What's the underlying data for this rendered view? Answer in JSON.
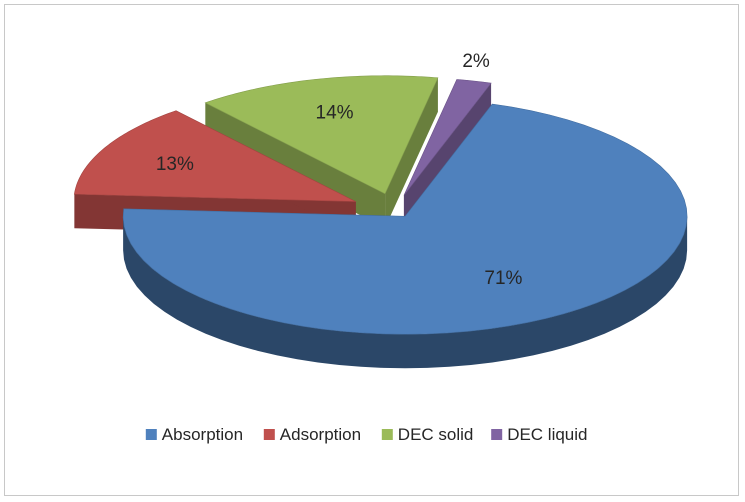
{
  "chart_data": {
    "type": "pie",
    "style": "3d-exploded",
    "title": "",
    "slices": [
      {
        "label": "Absorption",
        "value": 71,
        "display": "71%",
        "color": "#4f81bd"
      },
      {
        "label": "Adsorption",
        "value": 13,
        "display": "13%",
        "color": "#c0504d"
      },
      {
        "label": "DEC solid",
        "value": 14,
        "display": "14%",
        "color": "#9bbb59"
      },
      {
        "label": "DEC liquid",
        "value": 2,
        "display": "2%",
        "color": "#8064a2"
      }
    ],
    "legend_position": "bottom"
  }
}
